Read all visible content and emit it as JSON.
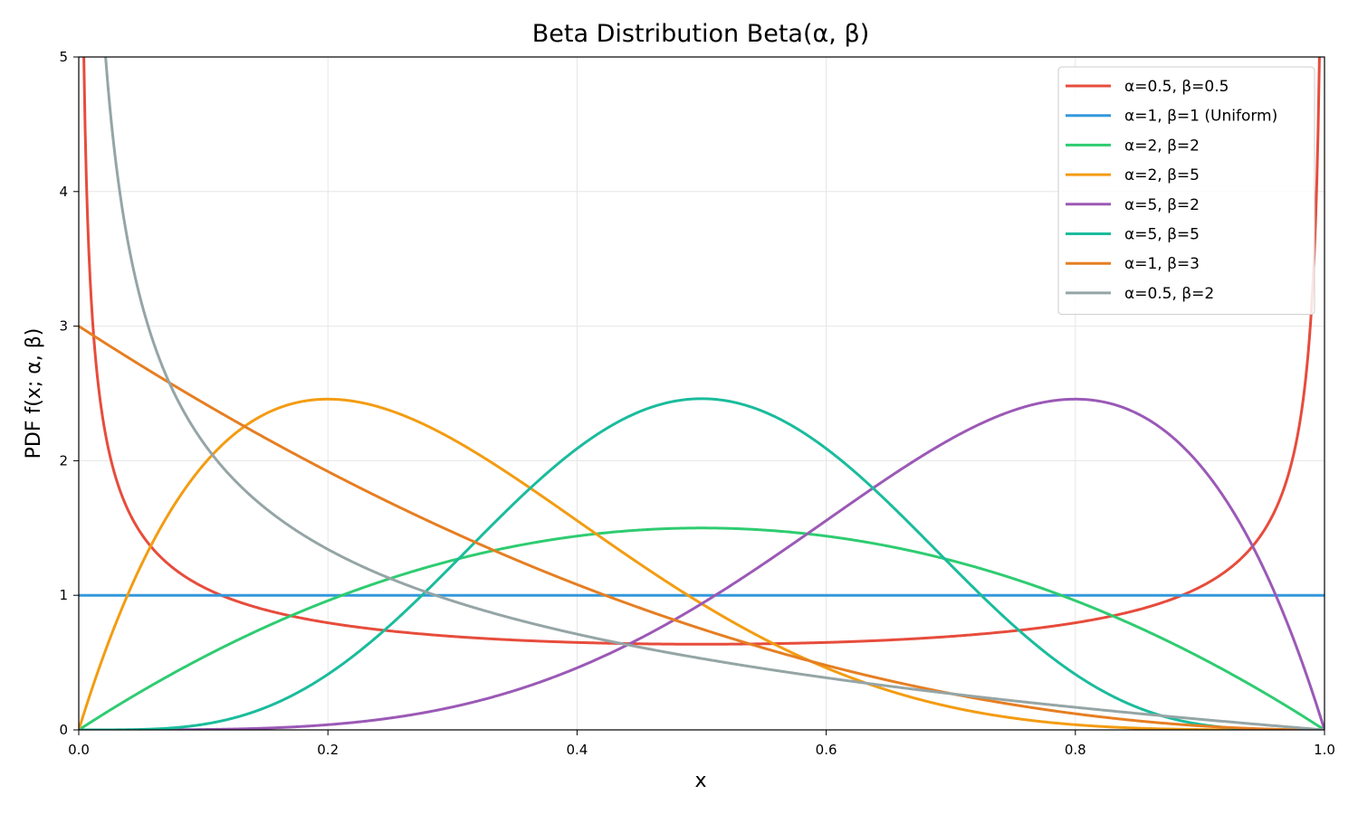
{
  "chart_data": {
    "type": "line",
    "title": "Beta Distribution  Beta(α, β)",
    "xlabel": "x",
    "ylabel": "PDF  f(x; α, β)",
    "xlim": [
      0,
      1
    ],
    "ylim": [
      0,
      5
    ],
    "xticks": [
      "0.0",
      "0.2",
      "0.4",
      "0.6",
      "0.8",
      "1.0"
    ],
    "yticks": [
      "0",
      "1",
      "2",
      "3",
      "4",
      "5"
    ],
    "grid": true,
    "legend_position": "top-right",
    "series": [
      {
        "name": "α=0.5, β=0.5",
        "alpha": 0.5,
        "beta": 0.5,
        "color": "#e74c3c"
      },
      {
        "name": "α=1, β=1 (Uniform)",
        "alpha": 1,
        "beta": 1,
        "color": "#3498db"
      },
      {
        "name": "α=2, β=2",
        "alpha": 2,
        "beta": 2,
        "color": "#2ecc71"
      },
      {
        "name": "α=2, β=5",
        "alpha": 2,
        "beta": 5,
        "color": "#f39c12"
      },
      {
        "name": "α=5, β=2",
        "alpha": 5,
        "beta": 2,
        "color": "#9b59b6"
      },
      {
        "name": "α=5, β=5",
        "alpha": 5,
        "beta": 5,
        "color": "#1abc9c"
      },
      {
        "name": "α=1, β=3",
        "alpha": 1,
        "beta": 3,
        "color": "#e67e22"
      },
      {
        "name": "α=0.5, β=2",
        "alpha": 0.5,
        "beta": 2,
        "color": "#95a5a6"
      }
    ]
  }
}
